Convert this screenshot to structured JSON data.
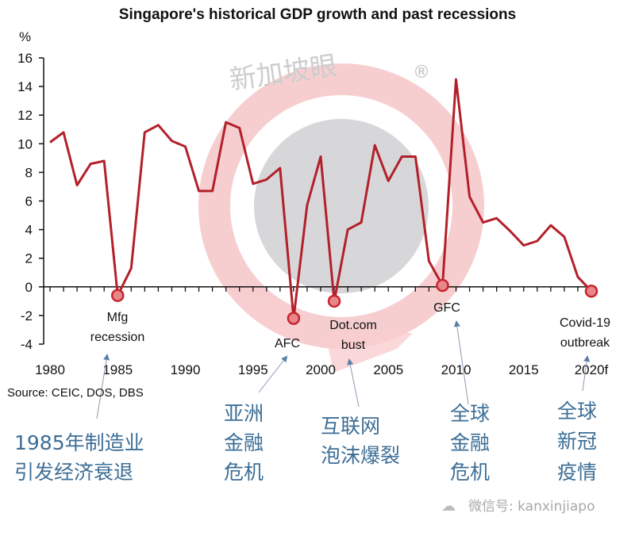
{
  "chart_data": {
    "type": "line",
    "title": "Singapore's historical GDP growth and past recessions",
    "ylabel": "%",
    "xlabel": "",
    "ylim": [
      -4,
      16
    ],
    "yticks": [
      16,
      14,
      12,
      10,
      8,
      6,
      4,
      2,
      0,
      -2,
      -4
    ],
    "xlim": [
      1980,
      2020
    ],
    "xtick_labels": [
      {
        "year": 1980,
        "label": "1980"
      },
      {
        "year": 1985,
        "label": "1985"
      },
      {
        "year": 1990,
        "label": "1990"
      },
      {
        "year": 1995,
        "label": "1995"
      },
      {
        "year": 2000,
        "label": "2000"
      },
      {
        "year": 2005,
        "label": "2005"
      },
      {
        "year": 2010,
        "label": "2010"
      },
      {
        "year": 2015,
        "label": "2015"
      },
      {
        "year": 2020,
        "label": "2020f"
      }
    ],
    "grid": false,
    "series": [
      {
        "name": "GDP growth",
        "color": "#b3202a",
        "x": [
          1980,
          1981,
          1982,
          1983,
          1984,
          1985,
          1986,
          1987,
          1988,
          1989,
          1990,
          1991,
          1992,
          1993,
          1994,
          1995,
          1996,
          1997,
          1998,
          1999,
          2000,
          2001,
          2002,
          2003,
          2004,
          2005,
          2006,
          2007,
          2008,
          2009,
          2010,
          2011,
          2012,
          2013,
          2014,
          2015,
          2016,
          2017,
          2018,
          2019,
          2020
        ],
        "values": [
          10.1,
          10.8,
          7.1,
          8.6,
          8.8,
          -0.6,
          1.3,
          10.8,
          11.3,
          10.2,
          9.8,
          6.7,
          6.7,
          11.5,
          11.1,
          7.2,
          7.5,
          8.3,
          -2.2,
          5.7,
          9.1,
          -1.0,
          4.0,
          4.5,
          9.9,
          7.4,
          9.1,
          9.1,
          1.8,
          0.1,
          14.5,
          6.3,
          4.5,
          4.8,
          3.9,
          2.9,
          3.2,
          4.3,
          3.5,
          0.7,
          -0.3
        ]
      }
    ],
    "recession_markers": [
      {
        "year": 1985,
        "value": -0.6,
        "label_lines": [
          "Mfg",
          "recession"
        ],
        "cn_lines": [
          "1985年制造业",
          "引发经济衰退"
        ]
      },
      {
        "year": 1998,
        "value": -2.2,
        "label_lines": [
          "AFC"
        ],
        "cn_lines": [
          "亚洲",
          "金融",
          "危机"
        ]
      },
      {
        "year": 2001,
        "value": -1.0,
        "label_lines": [
          "Dot.com",
          "bust"
        ],
        "cn_lines": [
          "互联网",
          "泡沫爆裂"
        ]
      },
      {
        "year": 2009,
        "value": 0.1,
        "label_lines": [
          "GFC"
        ],
        "cn_lines": [
          "全球",
          "金融",
          "危机"
        ]
      },
      {
        "year": 2020,
        "value": -0.3,
        "label_lines": [
          "Covid-19",
          "outbreak"
        ],
        "cn_lines": [
          "全球",
          "新冠",
          "疫情"
        ]
      }
    ],
    "marker_color": "#e8868a",
    "annotation_text_color": "#3d6e96",
    "arrow_color": "#5a7fa8"
  },
  "source": "Source: CEIC, DOS, DBS",
  "watermark": {
    "brand": "新加坡眼",
    "registered": "®",
    "wechat": "微信号: kanxinjiapo"
  }
}
